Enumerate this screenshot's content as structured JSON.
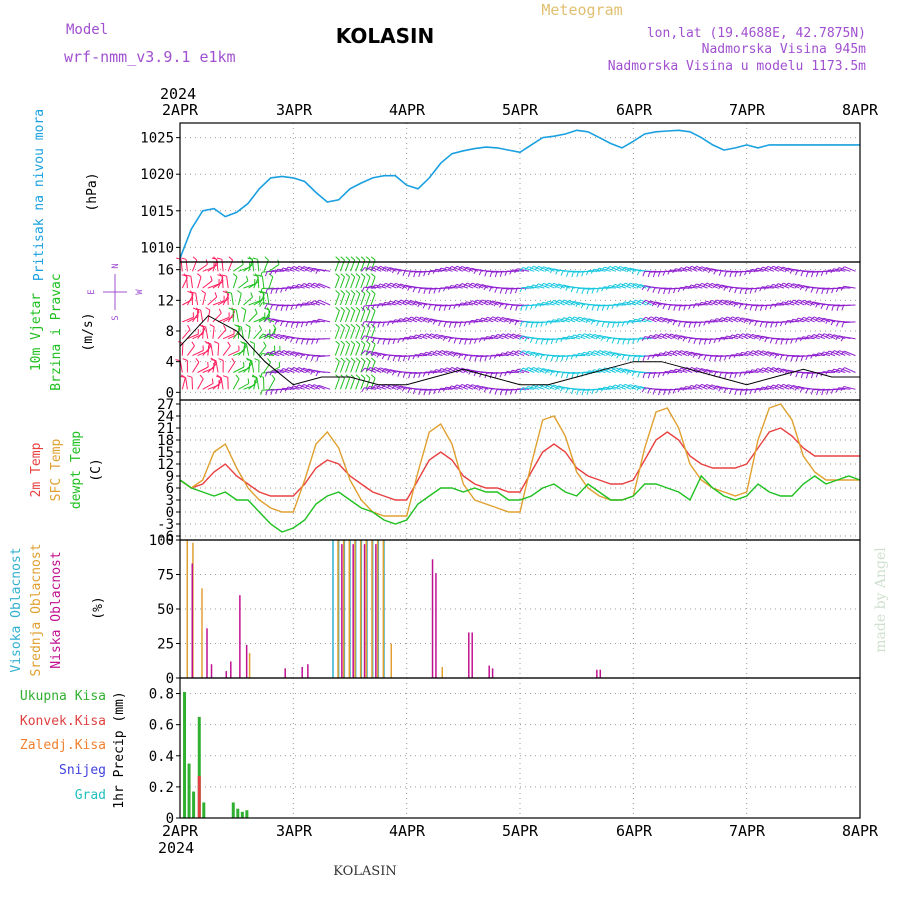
{
  "header": {
    "model_label": "Model",
    "model_name": "wrf-nmm_v3.9.1 e1km",
    "title": "KOLASIN",
    "chart_type": "Meteogram",
    "lonlat": "lon,lat (19.4688E, 42.7875N)",
    "elevation": "Nadmorska Visina 945m",
    "model_elevation": "Nadmorska Visina u modelu 1173.5m"
  },
  "time_axis": {
    "year": "2024",
    "days": [
      "2APR",
      "3APR",
      "4APR",
      "5APR",
      "6APR",
      "7APR",
      "8APR"
    ]
  },
  "footer": {
    "station": "KOLASIN",
    "watermark": "made by Angel"
  },
  "colors": {
    "pressure": "#1aa0e0",
    "temp2m": "#e84040",
    "sfc_temp": "#e0a030",
    "dewpt": "#20c020",
    "wind_slow": "#ff2060",
    "wind_mid": "#20c020",
    "wind_fast": "#18c8e0",
    "wind_strong": "#9020d0",
    "high_cloud": "#30b0d0",
    "mid_cloud": "#e0a030",
    "low_cloud": "#c01090",
    "precip_total": "#30b030",
    "precip_conv": "#e04040",
    "snow": "#4040e0",
    "hail": "#20c0c0",
    "grid": "#999999"
  },
  "chart_data": [
    {
      "type": "line",
      "panel": "pressure",
      "ylabel": "Pritisak na nivou mora",
      "unit": "(hPa)",
      "ylim": [
        1008,
        1027
      ],
      "yticks": [
        1010,
        1015,
        1020,
        1025
      ],
      "grid": true,
      "series": [
        {
          "x_days": [
            0,
            0.1,
            0.2,
            0.3,
            0.4,
            0.5,
            0.6,
            0.7,
            0.8,
            0.9,
            1.0,
            1.1,
            1.2,
            1.3,
            1.4,
            1.5,
            1.6,
            1.7,
            1.8,
            1.9,
            2.0,
            2.1,
            2.2,
            2.3,
            2.4,
            2.5,
            2.6,
            2.7,
            2.8,
            2.9,
            3.0,
            3.1,
            3.2,
            3.3,
            3.4,
            3.5,
            3.6,
            3.7,
            3.8,
            3.9,
            4.0,
            4.1,
            4.2,
            4.3,
            4.4,
            4.5,
            4.6,
            4.7,
            4.8,
            4.9,
            5.0,
            5.1,
            5.2,
            5.3,
            5.4,
            5.5,
            5.6,
            5.7,
            5.8,
            5.9,
            6.0
          ],
          "values": [
            1008.5,
            1012.5,
            1015.0,
            1015.3,
            1014.2,
            1014.8,
            1016.0,
            1018.0,
            1019.5,
            1019.7,
            1019.5,
            1019.0,
            1017.5,
            1016.2,
            1016.5,
            1018.0,
            1018.8,
            1019.5,
            1019.8,
            1019.8,
            1018.5,
            1018.0,
            1019.5,
            1021.5,
            1022.8,
            1023.2,
            1023.5,
            1023.7,
            1023.6,
            1023.3,
            1023.0,
            1024.0,
            1025.0,
            1025.2,
            1025.5,
            1026.0,
            1025.8,
            1025.0,
            1024.2,
            1023.6,
            1024.5,
            1025.5,
            1025.8,
            1025.9,
            1026.0,
            1025.8,
            1025.0,
            1024.0,
            1023.3,
            1023.6,
            1024.0,
            1023.6,
            1024.0,
            1024.0,
            1024.0,
            1024.0,
            1024.0,
            1024.0,
            1024.0,
            1024.0,
            1024.0
          ]
        }
      ]
    },
    {
      "type": "scatter",
      "panel": "wind",
      "ylabel": "10m Vjetar Brzina i Pravac",
      "unit": "(m/s)",
      "ylim": [
        -1,
        17
      ],
      "yticks": [
        0,
        4,
        8,
        12,
        16
      ],
      "direction_legend": [
        "N",
        "E",
        "S",
        "W"
      ],
      "grid": true,
      "series": [
        {
          "name": "speed",
          "x_days": [
            0,
            0.25,
            0.5,
            0.75,
            1.0,
            1.25,
            1.5,
            1.75,
            2.0,
            2.25,
            2.5,
            2.75,
            3.0,
            3.25,
            3.5,
            3.75,
            4.0,
            4.25,
            4.5,
            4.75,
            5.0,
            5.25,
            5.5,
            5.75,
            6.0
          ],
          "values": [
            6,
            10,
            8,
            4,
            1,
            2,
            2,
            1,
            1,
            2,
            3,
            2,
            1,
            1,
            2,
            3,
            4,
            4,
            3,
            2,
            1,
            2,
            3,
            2,
            2
          ]
        }
      ]
    },
    {
      "type": "line",
      "panel": "temperature",
      "ylabel": "2m Temp / SFC Temp / dewpt Temp",
      "unit": "(C)",
      "ylim": [
        -7,
        28
      ],
      "yticks": [
        -6,
        -3,
        0,
        3,
        6,
        9,
        12,
        15,
        18,
        21,
        24,
        27
      ],
      "grid": true,
      "x_days": [
        0,
        0.1,
        0.2,
        0.3,
        0.4,
        0.5,
        0.6,
        0.7,
        0.8,
        0.9,
        1.0,
        1.1,
        1.2,
        1.3,
        1.4,
        1.5,
        1.6,
        1.7,
        1.8,
        1.9,
        2.0,
        2.1,
        2.2,
        2.3,
        2.4,
        2.5,
        2.6,
        2.7,
        2.8,
        2.9,
        3.0,
        3.1,
        3.2,
        3.3,
        3.4,
        3.5,
        3.6,
        3.7,
        3.8,
        3.9,
        4.0,
        4.1,
        4.2,
        4.3,
        4.4,
        4.5,
        4.6,
        4.7,
        4.8,
        4.9,
        5.0,
        5.1,
        5.2,
        5.3,
        5.4,
        5.5,
        5.6,
        5.7,
        5.8,
        5.9,
        6.0
      ],
      "series": [
        {
          "name": "2m Temp",
          "values": [
            8,
            6,
            7,
            10,
            12,
            9,
            7,
            5,
            4,
            4,
            4,
            7,
            11,
            13,
            12,
            9,
            7,
            5,
            4,
            3,
            3,
            8,
            13,
            15,
            13,
            9,
            7,
            6,
            6,
            5,
            5,
            10,
            15,
            17,
            15,
            11,
            9,
            8,
            7,
            7,
            8,
            13,
            18,
            20,
            18,
            14,
            12,
            11,
            11,
            11,
            12,
            16,
            20,
            21,
            19,
            16,
            14,
            14,
            14,
            14,
            14
          ]
        },
        {
          "name": "SFC Temp",
          "values": [
            8,
            6,
            8,
            15,
            17,
            11,
            6,
            3,
            1,
            0,
            0,
            8,
            17,
            20,
            16,
            8,
            3,
            0,
            -1,
            -1,
            -1,
            10,
            20,
            22,
            17,
            7,
            3,
            2,
            1,
            0,
            0,
            12,
            23,
            24,
            19,
            10,
            6,
            4,
            3,
            3,
            4,
            16,
            25,
            26,
            21,
            12,
            8,
            6,
            5,
            4,
            5,
            18,
            26,
            27,
            23,
            14,
            10,
            8,
            8,
            8,
            8
          ]
        },
        {
          "name": "dewpt Temp",
          "values": [
            8,
            6,
            5,
            4,
            5,
            3,
            3,
            0,
            -3,
            -5,
            -4,
            -2,
            2,
            4,
            5,
            3,
            1,
            0,
            -2,
            -3,
            -2,
            2,
            4,
            6,
            6,
            5,
            6,
            5,
            5,
            3,
            3,
            4,
            6,
            7,
            5,
            4,
            7,
            5,
            3,
            3,
            4,
            7,
            7,
            6,
            5,
            3,
            9,
            6,
            4,
            3,
            4,
            7,
            5,
            4,
            4,
            7,
            9,
            7,
            8,
            9,
            8
          ]
        }
      ]
    },
    {
      "type": "bar",
      "panel": "cloud",
      "ylabel": "Visoka Oblacnost / Srednja Oblacnost / Niska Oblacnost",
      "unit": "(%)",
      "ylim": [
        0,
        100
      ],
      "yticks": [
        0,
        25,
        50,
        75,
        100
      ],
      "grid": true,
      "series": [
        {
          "name": "Visoka Oblacnost",
          "x_days": [
            1.35,
            1.4,
            1.45,
            1.5,
            1.55,
            1.6,
            1.65,
            1.7,
            1.75,
            1.8
          ],
          "values": [
            100,
            100,
            100,
            100,
            100,
            100,
            100,
            100,
            100,
            100
          ]
        },
        {
          "name": "Srednja Oblacnost",
          "x_days": [
            0.05,
            0.1,
            0.18,
            0.6,
            1.38,
            1.43,
            1.48,
            1.53,
            1.58,
            1.63,
            1.68,
            1.73,
            1.78,
            1.85,
            2.3
          ],
          "values": [
            100,
            98,
            65,
            18,
            100,
            100,
            100,
            100,
            100,
            100,
            100,
            100,
            100,
            25,
            8
          ]
        },
        {
          "name": "Niska Oblacnost",
          "x_days": [
            0.08,
            0.21,
            0.25,
            0.38,
            0.42,
            0.5,
            0.56,
            0.9,
            1.05,
            1.1,
            1.4,
            1.5,
            1.6,
            1.7,
            2.2,
            2.23,
            2.52,
            2.55,
            2.7,
            2.73,
            3.65,
            3.68
          ],
          "values": [
            83,
            36,
            10,
            5,
            12,
            60,
            24,
            7,
            8,
            10,
            97,
            97,
            97,
            97,
            86,
            76,
            33,
            33,
            9,
            7,
            6,
            6
          ]
        }
      ]
    },
    {
      "type": "bar",
      "panel": "precipitation",
      "ylabel": "1hr Precip",
      "unit": "(mm)",
      "ylim": [
        0,
        0.9
      ],
      "yticks": [
        0,
        0.2,
        0.4,
        0.6,
        0.8
      ],
      "legend": [
        "Ukupna Kisa",
        "Konvek.Kisa",
        "Zaledj.Kisa",
        "Snijeg",
        "Grad"
      ],
      "grid": true,
      "series": [
        {
          "name": "Ukupna Kisa",
          "x_days": [
            0.04,
            0.08,
            0.12,
            0.17,
            0.21,
            0.47,
            0.51,
            0.55,
            0.59
          ],
          "values": [
            0.81,
            0.35,
            0.17,
            0.65,
            0.1,
            0.1,
            0.06,
            0.04,
            0.05
          ]
        },
        {
          "name": "Konvek.Kisa",
          "x_days": [
            0.17
          ],
          "values": [
            0.27
          ]
        }
      ]
    }
  ]
}
